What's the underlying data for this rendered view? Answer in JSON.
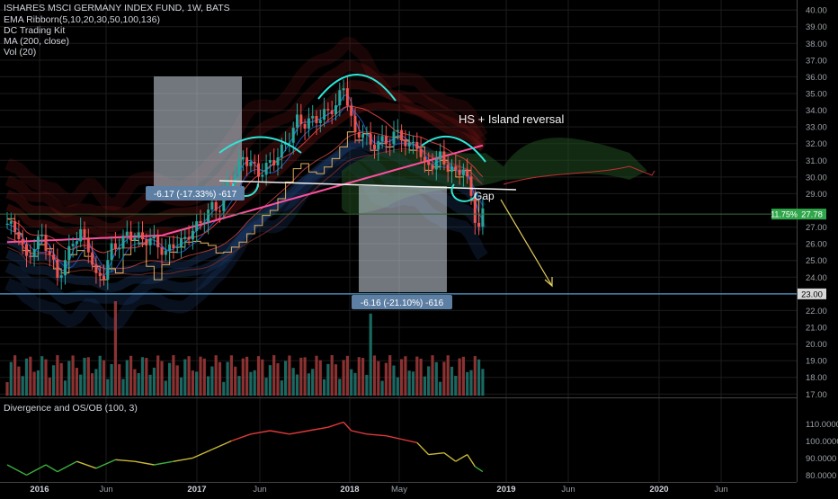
{
  "header": {
    "symbol_line": "ISHARES MSCI GERMANY INDEX FUND, 1W, BATS",
    "indicators": [
      "EMA Ribborn(5,10,20,30,50,100,136)",
      "DC Trading Kit",
      "MA (200, close)",
      "Vol (20)"
    ]
  },
  "sub_pane": {
    "title": "Divergence and OS/OB (100, 3)",
    "ticks": [
      {
        "value": 110,
        "label": "110.0000"
      },
      {
        "value": 100,
        "label": "100.0000"
      },
      {
        "value": 90,
        "label": "90.0000"
      },
      {
        "value": 80,
        "label": "80.0000"
      }
    ]
  },
  "annotations": {
    "pattern_label": "HS + Island reversal",
    "gap_label": "Gap",
    "measure_1": "-6.17 (-17.33%) -617",
    "measure_2": "-6.16 (-21.10%) -616"
  },
  "price_badges": {
    "last_percent": "11.75%",
    "last_price": "27.78",
    "support_price": "23.00"
  },
  "colors": {
    "background": "#000000",
    "grid": "#1c1c1c",
    "bull_candle": "#26a69a",
    "bear_candle": "#ef5350",
    "ribbon_red": "#8b1a1a",
    "cloud_green": "#1f4d1f",
    "ma200": "#ff4fa0",
    "donchian": "#e0b060",
    "support_line": "#5aa0d0",
    "badge_green": "#2fa64a",
    "measure_box": "#5d7fa3",
    "cyan_arc": "#2ee6d8",
    "arrow": "#e6d060"
  },
  "chart_data": {
    "type": "candlestick",
    "title": "ISHARES MSCI GERMANY INDEX FUND, 1W, BATS",
    "x_ticks": [
      "2016",
      "Jun",
      "2017",
      "Jun",
      "2018",
      "May",
      "2019",
      "Jun",
      "2020",
      "Jun"
    ],
    "y_ticks": [
      {
        "value": 40,
        "label": "40.00"
      },
      {
        "value": 39,
        "label": "39.00"
      },
      {
        "value": 38,
        "label": "38.00"
      },
      {
        "value": 37,
        "label": "37.00"
      },
      {
        "value": 36,
        "label": "36.00"
      },
      {
        "value": 35,
        "label": "35.00"
      },
      {
        "value": 34,
        "label": "34.00"
      },
      {
        "value": 33,
        "label": "33.00"
      },
      {
        "value": 32,
        "label": "32.00"
      },
      {
        "value": 31,
        "label": "31.00"
      },
      {
        "value": 30,
        "label": "30.00"
      },
      {
        "value": 29,
        "label": "29.00"
      },
      {
        "value": 27,
        "label": "27.00"
      },
      {
        "value": 26,
        "label": "26.00"
      },
      {
        "value": 25,
        "label": "25.00"
      },
      {
        "value": 24,
        "label": "24.00"
      },
      {
        "value": 22,
        "label": "22.00"
      },
      {
        "value": 21,
        "label": "21.00"
      },
      {
        "value": 20,
        "label": "20.00"
      },
      {
        "value": 19,
        "label": "19.00"
      },
      {
        "value": 18,
        "label": "18.00"
      },
      {
        "value": 17,
        "label": "17.00"
      }
    ],
    "y_range": [
      16.8,
      40.6
    ],
    "support_level": 23.0,
    "last_price": 27.78,
    "close_series": [
      {
        "week": 0,
        "close": 27.2
      },
      {
        "week": 3,
        "close": 26.6
      },
      {
        "week": 5,
        "close": 25.0
      },
      {
        "week": 7,
        "close": 25.9
      },
      {
        "week": 9,
        "close": 26.4
      },
      {
        "week": 11,
        "close": 25.4
      },
      {
        "week": 13,
        "close": 24.0
      },
      {
        "week": 15,
        "close": 24.9
      },
      {
        "week": 17,
        "close": 26.2
      },
      {
        "week": 19,
        "close": 26.6
      },
      {
        "week": 21,
        "close": 25.8
      },
      {
        "week": 23,
        "close": 23.9
      },
      {
        "week": 25,
        "close": 24.2
      },
      {
        "week": 27,
        "close": 25.7
      },
      {
        "week": 29,
        "close": 26.0
      },
      {
        "week": 31,
        "close": 26.5
      },
      {
        "week": 33,
        "close": 26.5
      },
      {
        "week": 35,
        "close": 26.2
      },
      {
        "week": 37,
        "close": 26.3
      },
      {
        "week": 39,
        "close": 25.9
      },
      {
        "week": 41,
        "close": 25.4
      },
      {
        "week": 43,
        "close": 26.0
      },
      {
        "week": 45,
        "close": 26.0
      },
      {
        "week": 47,
        "close": 26.6
      },
      {
        "week": 49,
        "close": 27.0
      },
      {
        "week": 51,
        "close": 27.6
      },
      {
        "week": 53,
        "close": 28.2
      },
      {
        "week": 55,
        "close": 28.2
      },
      {
        "week": 57,
        "close": 29.6
      },
      {
        "week": 59,
        "close": 30.2
      },
      {
        "week": 61,
        "close": 31.2
      },
      {
        "week": 63,
        "close": 30.8
      },
      {
        "week": 65,
        "close": 30.2
      },
      {
        "week": 67,
        "close": 30.6
      },
      {
        "week": 69,
        "close": 31.0
      },
      {
        "week": 71,
        "close": 31.6
      },
      {
        "week": 73,
        "close": 32.4
      },
      {
        "week": 75,
        "close": 33.4
      },
      {
        "week": 77,
        "close": 33.2
      },
      {
        "week": 79,
        "close": 33.4
      },
      {
        "week": 81,
        "close": 33.6
      },
      {
        "week": 83,
        "close": 33.9
      },
      {
        "week": 85,
        "close": 34.3
      },
      {
        "week": 87,
        "close": 35.4
      },
      {
        "week": 88,
        "close": 34.6
      },
      {
        "week": 90,
        "close": 32.4
      },
      {
        "week": 92,
        "close": 32.8
      },
      {
        "week": 94,
        "close": 31.8
      },
      {
        "week": 96,
        "close": 32.2
      },
      {
        "week": 98,
        "close": 32.0
      },
      {
        "week": 100,
        "close": 32.6
      },
      {
        "week": 102,
        "close": 32.4
      },
      {
        "week": 104,
        "close": 31.8
      },
      {
        "week": 106,
        "close": 32.0
      },
      {
        "week": 108,
        "close": 30.6
      },
      {
        "week": 110,
        "close": 30.8
      },
      {
        "week": 112,
        "close": 31.2
      },
      {
        "week": 114,
        "close": 30.6
      },
      {
        "week": 116,
        "close": 30.2
      },
      {
        "week": 118,
        "close": 30.6
      },
      {
        "week": 120,
        "close": 28.8
      },
      {
        "week": 121,
        "close": 27.6
      },
      {
        "week": 122,
        "close": 27.0
      },
      {
        "week": 123,
        "close": 27.78
      }
    ],
    "divergence_series": [
      {
        "week": 0,
        "value": 86
      },
      {
        "week": 5,
        "value": 80
      },
      {
        "week": 10,
        "value": 86
      },
      {
        "week": 13,
        "value": 82
      },
      {
        "week": 18,
        "value": 88
      },
      {
        "week": 23,
        "value": 84
      },
      {
        "week": 28,
        "value": 89
      },
      {
        "week": 33,
        "value": 88
      },
      {
        "week": 38,
        "value": 86
      },
      {
        "week": 43,
        "value": 88
      },
      {
        "week": 48,
        "value": 90
      },
      {
        "week": 53,
        "value": 95
      },
      {
        "week": 58,
        "value": 100
      },
      {
        "week": 63,
        "value": 104
      },
      {
        "week": 68,
        "value": 106
      },
      {
        "week": 73,
        "value": 104
      },
      {
        "week": 78,
        "value": 106
      },
      {
        "week": 83,
        "value": 108
      },
      {
        "week": 87,
        "value": 111
      },
      {
        "week": 89,
        "value": 106
      },
      {
        "week": 93,
        "value": 104
      },
      {
        "week": 98,
        "value": 103
      },
      {
        "week": 102,
        "value": 101
      },
      {
        "week": 106,
        "value": 99
      },
      {
        "week": 109,
        "value": 92
      },
      {
        "week": 113,
        "value": 93
      },
      {
        "week": 116,
        "value": 88
      },
      {
        "week": 119,
        "value": 92
      },
      {
        "week": 121,
        "value": 85
      },
      {
        "week": 123,
        "value": 82
      }
    ]
  }
}
